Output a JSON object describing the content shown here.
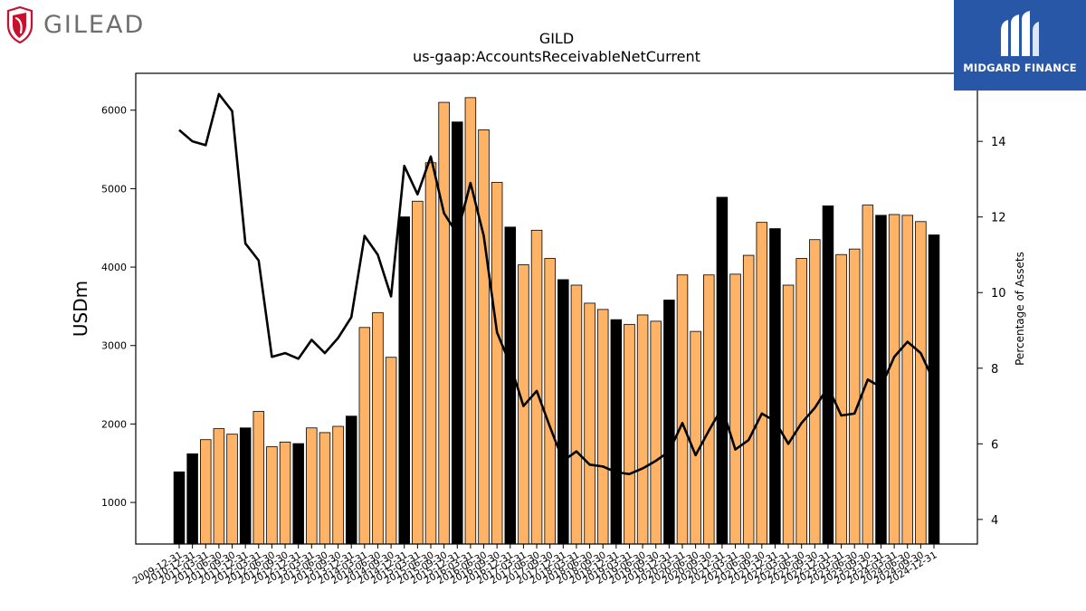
{
  "brand": {
    "left_logo_text": "GILEAD",
    "right_logo_text": "MIDGARD FINANCE",
    "left_logo_color": "#c8102e",
    "right_logo_bg": "#2957a8"
  },
  "chart_data": {
    "type": "bar",
    "title": "GILD",
    "subtitle": "us-gaap:AccountsReceivableNetCurrent",
    "ylabel": "USDm",
    "y2label": "Percentage of Assets",
    "ylim": [
      470,
      6470
    ],
    "y2lim": [
      3.35,
      15.8
    ],
    "yticks": [
      1000,
      2000,
      3000,
      4000,
      5000,
      6000
    ],
    "y2ticks": [
      4,
      6,
      8,
      10,
      12,
      14
    ],
    "grid": false,
    "bar_colors": {
      "annual": "#000000",
      "quarterly": "#ffb366",
      "edge": "#000000"
    },
    "line_color": "#000000",
    "categories": [
      "2009-12-31",
      "2010-12-31",
      "2011-03-31",
      "2011-06-30",
      "2011-09-30",
      "2011-12-31",
      "2012-03-31",
      "2012-06-30",
      "2012-09-30",
      "2012-12-31",
      "2013-03-31",
      "2013-06-30",
      "2013-09-30",
      "2013-12-31",
      "2014-03-31",
      "2014-06-30",
      "2014-09-30",
      "2014-12-31",
      "2015-03-31",
      "2015-06-30",
      "2015-09-30",
      "2015-12-31",
      "2016-03-31",
      "2016-06-30",
      "2016-09-30",
      "2016-12-31",
      "2017-03-31",
      "2017-06-30",
      "2017-09-30",
      "2017-12-31",
      "2018-03-31",
      "2018-06-30",
      "2018-09-30",
      "2018-12-31",
      "2019-03-31",
      "2019-06-30",
      "2019-09-30",
      "2019-12-31",
      "2020-03-31",
      "2020-06-30",
      "2020-09-30",
      "2020-12-31",
      "2021-03-31",
      "2021-06-30",
      "2021-09-30",
      "2021-12-31",
      "2022-03-31",
      "2022-06-30",
      "2022-09-30",
      "2022-12-31",
      "2023-03-31",
      "2023-06-30",
      "2023-09-30",
      "2023-12-31",
      "2024-03-31",
      "2024-06-30",
      "2024-09-30",
      "2024-12-31"
    ],
    "annual_flags": [
      1,
      1,
      0,
      0,
      0,
      1,
      0,
      0,
      0,
      1,
      0,
      0,
      0,
      1,
      0,
      0,
      0,
      1,
      0,
      0,
      0,
      1,
      0,
      0,
      0,
      1,
      0,
      0,
      0,
      1,
      0,
      0,
      0,
      1,
      0,
      0,
      0,
      1,
      0,
      0,
      0,
      1,
      0,
      0,
      0,
      1,
      0,
      0,
      0,
      1,
      0,
      0,
      0,
      1,
      0,
      0,
      0,
      1
    ],
    "series": [
      {
        "name": "USDm",
        "values": [
          1390,
          1620,
          1800,
          1940,
          1870,
          1950,
          2160,
          1710,
          1770,
          1750,
          1950,
          1890,
          1970,
          2100,
          3230,
          3420,
          2850,
          4640,
          4840,
          5330,
          6100,
          5850,
          6160,
          5750,
          5080,
          4510,
          4030,
          4470,
          4110,
          3840,
          3770,
          3540,
          3460,
          3330,
          3270,
          3390,
          3310,
          3580,
          3900,
          3180,
          3900,
          4890,
          3910,
          4150,
          4570,
          4490,
          3770,
          4110,
          4350,
          4780,
          4160,
          4230,
          4790,
          4660,
          4670,
          4660,
          4580,
          4410
        ]
      },
      {
        "name": "Percentage of Assets",
        "values": [
          14.3,
          14.0,
          13.9,
          15.25,
          14.8,
          11.3,
          10.85,
          8.3,
          8.4,
          8.25,
          8.75,
          8.4,
          8.8,
          9.35,
          11.5,
          11.0,
          9.9,
          13.35,
          12.6,
          13.6,
          12.1,
          11.55,
          12.9,
          11.5,
          8.95,
          8.1,
          7.0,
          7.4,
          6.45,
          5.55,
          5.8,
          5.45,
          5.4,
          5.25,
          5.2,
          5.35,
          5.55,
          5.8,
          6.55,
          5.7,
          6.35,
          6.95,
          5.85,
          6.1,
          6.8,
          6.6,
          6.0,
          6.55,
          6.95,
          7.5,
          6.75,
          6.8,
          7.7,
          7.5,
          8.3,
          8.7,
          8.4,
          7.65
        ]
      }
    ]
  }
}
